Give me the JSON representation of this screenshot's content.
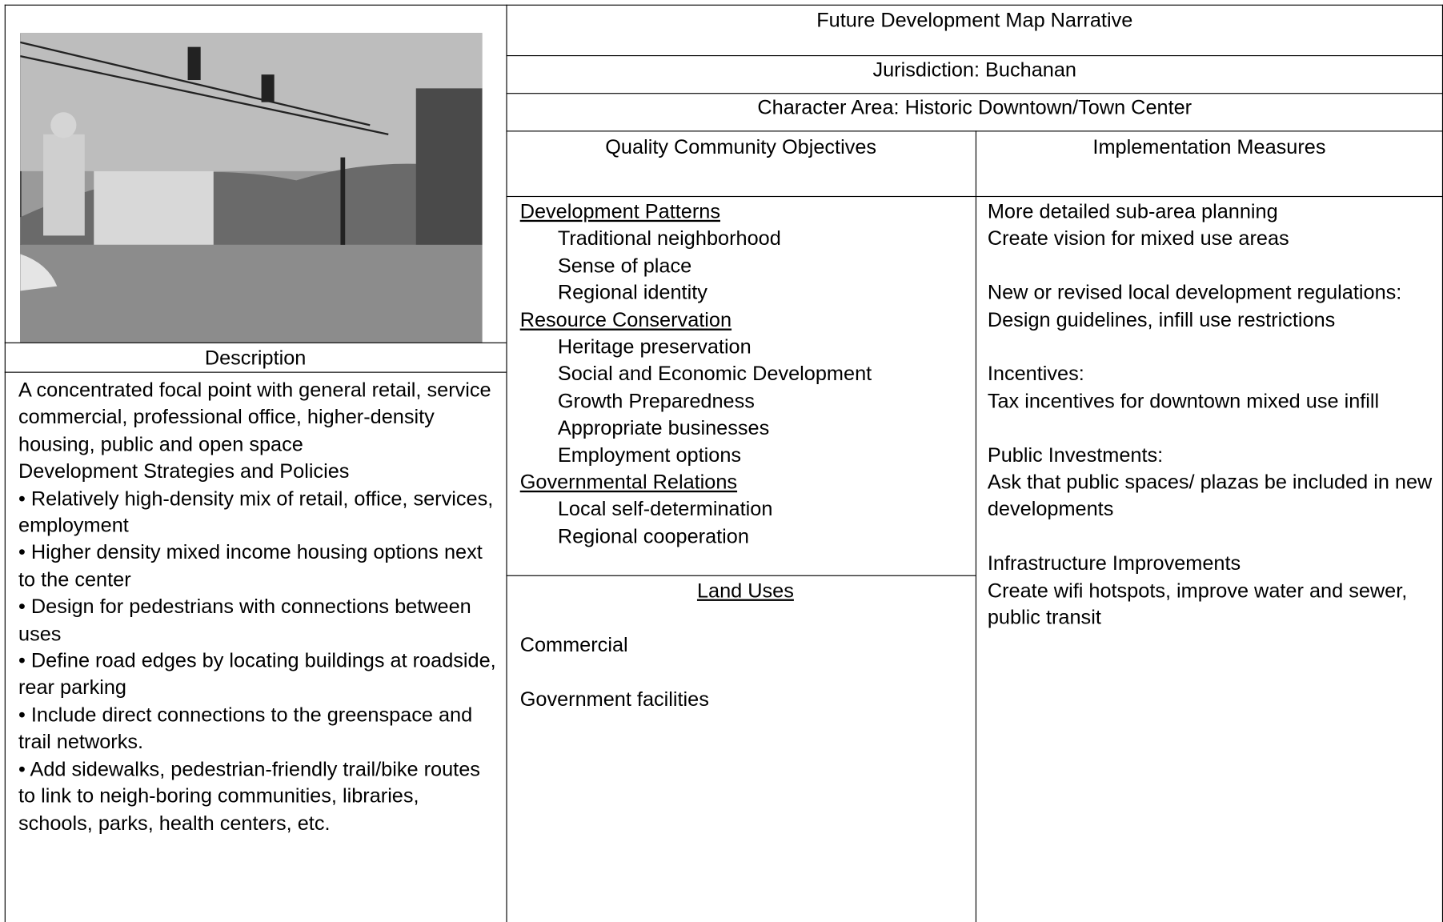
{
  "title": "Future Development Map Narrative",
  "jurisdiction": "Jurisdiction: Buchanan",
  "character_area": "Character Area: Historic Downtown/Town Center",
  "description": {
    "heading": "Description",
    "paragraphs": [
      "A concentrated focal point with general retail, service commercial, professional office, higher-density housing, public and open space",
      "Development Strategies and Policies",
      "• Relatively high-density mix of retail, office, services, employment",
      "• Higher density mixed income housing options next to the center",
      "• Design for pedestrians with connections between uses",
      "• Define road edges by locating buildings at roadside, rear parking",
      "• Include direct connections to the greenspace and trail networks.",
      "• Add sidewalks, pedestrian-friendly trail/bike routes to link to neigh-boring communities, libraries, schools, parks, health centers, etc."
    ]
  },
  "objectives": {
    "heading": "Quality Community Objectives",
    "groups": [
      {
        "name": "Development Patterns",
        "items": [
          "Traditional neighborhood",
          "Sense of place",
          "Regional identity"
        ]
      },
      {
        "name": "Resource Conservation",
        "items": [
          "Heritage preservation",
          "Social and Economic Development",
          "Growth Preparedness",
          "Appropriate businesses",
          "Employment options"
        ]
      },
      {
        "name": "Governmental Relations",
        "items": [
          "Local self-determination",
          "Regional cooperation"
        ]
      }
    ]
  },
  "land_uses": {
    "heading": "Land Uses",
    "items": [
      "Commercial",
      "Government facilities"
    ]
  },
  "implementation": {
    "heading": "Implementation Measures",
    "groups": [
      [
        "More detailed sub-area planning",
        "Create vision for mixed use areas"
      ],
      [
        "New or revised local development regulations:",
        "Design guidelines, infill use restrictions"
      ],
      [
        "Incentives:",
        "Tax incentives for downtown mixed use infill"
      ],
      [
        "Public Investments:",
        "Ask that public spaces/ plazas be included in new developments"
      ],
      [
        "Infrastructure Improvements",
        "Create wifi  hotspots, improve water and sewer, public transit"
      ]
    ]
  }
}
